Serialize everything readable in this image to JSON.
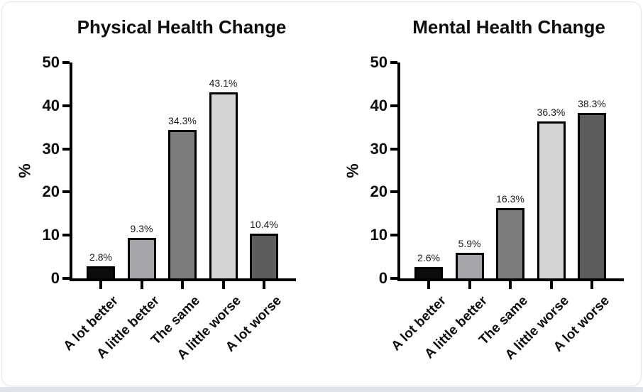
{
  "page": {
    "background_color": "#ffffff",
    "card_border_color": "#e4e5e8",
    "bottom_strip_color": "#dfe4ea",
    "axis_color": "#000000",
    "text_color": "#0d0d0d"
  },
  "chart_data": [
    {
      "type": "bar",
      "title": "Physical Health Change",
      "xlabel": "",
      "ylabel": "%",
      "ylim": [
        0,
        50
      ],
      "yticks": [
        0,
        10,
        20,
        30,
        40,
        50
      ],
      "grid": false,
      "legend": "none",
      "categories": [
        "A lot better",
        "A little better",
        "The same",
        "A little worse",
        "A lot worse"
      ],
      "values": [
        2.8,
        9.3,
        34.3,
        43.1,
        10.4
      ],
      "value_labels": [
        "2.8%",
        "9.3%",
        "34.3%",
        "43.1%",
        "10.4%"
      ],
      "bar_colors": [
        "#0c0c0c",
        "#a5a5a9",
        "#7d7d7d",
        "#d4d4d4",
        "#5d5d5d"
      ],
      "bar_border_color": "#000000"
    },
    {
      "type": "bar",
      "title": "Mental Health Change",
      "xlabel": "",
      "ylabel": "%",
      "ylim": [
        0,
        50
      ],
      "yticks": [
        0,
        10,
        20,
        30,
        40,
        50
      ],
      "grid": false,
      "legend": "none",
      "categories": [
        "A lot better",
        "A little better",
        "The same",
        "A little worse",
        "A lot worse"
      ],
      "values": [
        2.6,
        5.9,
        16.3,
        36.3,
        38.3
      ],
      "value_labels": [
        "2.6%",
        "5.9%",
        "16.3%",
        "36.3%",
        "38.3%"
      ],
      "bar_colors": [
        "#0c0c0c",
        "#a5a5a9",
        "#7d7d7d",
        "#d4d4d4",
        "#5d5d5d"
      ],
      "bar_border_color": "#000000"
    }
  ]
}
